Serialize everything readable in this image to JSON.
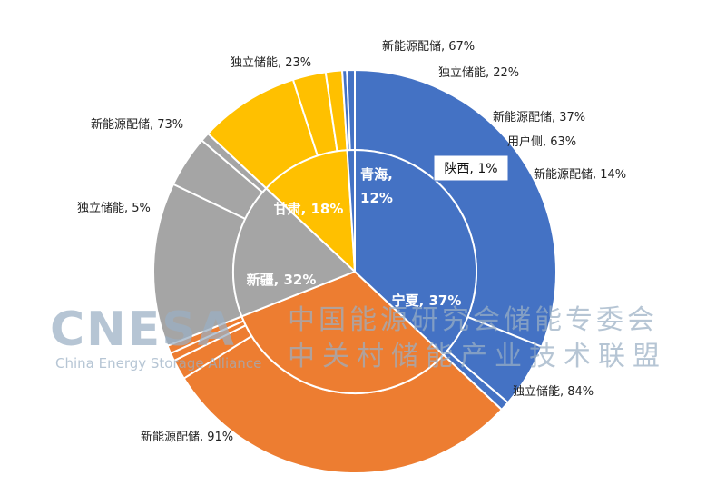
{
  "chart_data": {
    "type": "pie",
    "subtype": "sunburst",
    "colors": {
      "宁夏": "#4472c4",
      "新疆": "#ed7d31",
      "甘肃": "#a5a5a5",
      "青海": "#ffc000",
      "陕西": "#4472c4"
    },
    "inner": [
      {
        "name": "宁夏",
        "value": 37,
        "label": "宁夏, 37%"
      },
      {
        "name": "新疆",
        "value": 32,
        "label": "新疆, 32%"
      },
      {
        "name": "甘肃",
        "value": 18,
        "label": "甘肃, 18%"
      },
      {
        "name": "青海",
        "value": 12,
        "label": "青海,\n12%"
      },
      {
        "name": "陕西",
        "value": 1,
        "label": "陕西, 1%"
      }
    ],
    "outer": [
      {
        "parent": "宁夏",
        "value": 84,
        "label": "独立储能, 84%"
      },
      {
        "parent": "宁夏",
        "value": 14,
        "label": "新能源配储, 14%"
      },
      {
        "parent": "宁夏",
        "value": 2,
        "label": ""
      },
      {
        "parent": "新疆",
        "value": 91,
        "label": "新能源配储, 91%"
      },
      {
        "parent": "新疆",
        "value": 5,
        "label": "独立储能, 5%"
      },
      {
        "parent": "新疆",
        "value": 2,
        "label": ""
      },
      {
        "parent": "新疆",
        "value": 2,
        "label": ""
      },
      {
        "parent": "甘肃",
        "value": 73,
        "label": "新能源配储, 73%"
      },
      {
        "parent": "甘肃",
        "value": 23,
        "label": "独立储能, 23%"
      },
      {
        "parent": "甘肃",
        "value": 4,
        "label": ""
      },
      {
        "parent": "青海",
        "value": 67,
        "label": "新能源配储, 67%"
      },
      {
        "parent": "青海",
        "value": 22,
        "label": "独立储能, 22%"
      },
      {
        "parent": "青海",
        "value": 11,
        "label": ""
      },
      {
        "parent": "陕西",
        "value": 37,
        "label": "新能源配储, 37%"
      },
      {
        "parent": "陕西",
        "value": 63,
        "label": "用户侧, 63%"
      }
    ]
  },
  "watermark": {
    "logo": "CNESA",
    "subtitle": "China Energy Storage Alliance",
    "line1": "中国能源研究会储能专委会",
    "line2": "中关村储能产业技术联盟"
  }
}
